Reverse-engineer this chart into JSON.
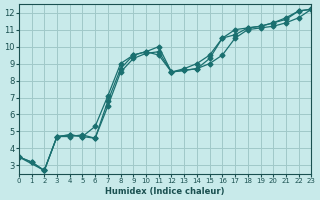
{
  "xlabel": "Humidex (Indice chaleur)",
  "ylabel": "",
  "background_color": "#c8eaea",
  "grid_color": "#a0c8c8",
  "line_color": "#1a7070",
  "xlim": [
    0,
    23
  ],
  "ylim": [
    2.5,
    12.5
  ],
  "xticks": [
    0,
    1,
    2,
    3,
    4,
    5,
    6,
    7,
    8,
    9,
    10,
    11,
    12,
    13,
    14,
    15,
    16,
    17,
    18,
    19,
    20,
    21,
    22,
    23
  ],
  "yticks": [
    3,
    4,
    5,
    6,
    7,
    8,
    9,
    10,
    11,
    12
  ],
  "line1_x": [
    0,
    1,
    2,
    3,
    4,
    5,
    6,
    7,
    8,
    9,
    10,
    11,
    12,
    13,
    14,
    15,
    16,
    17,
    18,
    19,
    20,
    21,
    22,
    23
  ],
  "line1_y": [
    3.5,
    3.2,
    2.7,
    4.7,
    4.7,
    4.8,
    4.6,
    6.8,
    8.7,
    9.5,
    9.7,
    10.0,
    8.5,
    8.6,
    8.7,
    9.3,
    10.5,
    10.7,
    11.1,
    11.2,
    11.4,
    11.6,
    12.1,
    12.2
  ],
  "line2_x": [
    0,
    1,
    2,
    3,
    4,
    5,
    6,
    7,
    8,
    9,
    10,
    11,
    12,
    13,
    14,
    15,
    16,
    17,
    18,
    19,
    20,
    21,
    22,
    23
  ],
  "line2_y": [
    3.5,
    3.2,
    2.7,
    4.7,
    4.8,
    4.7,
    5.3,
    7.1,
    9.0,
    9.5,
    9.7,
    9.5,
    8.5,
    8.7,
    9.0,
    9.5,
    10.5,
    11.0,
    11.1,
    11.2,
    11.4,
    11.7,
    12.1,
    12.2
  ],
  "line3_x": [
    0,
    2,
    3,
    4,
    5,
    6,
    7,
    8,
    9,
    10,
    11,
    12,
    13,
    14,
    15,
    16,
    17,
    18,
    19,
    20,
    21,
    22,
    23
  ],
  "line3_y": [
    3.5,
    2.7,
    4.7,
    4.8,
    4.7,
    4.6,
    6.5,
    8.5,
    9.3,
    9.6,
    9.7,
    8.5,
    8.6,
    8.7,
    9.0,
    9.5,
    10.5,
    11.0,
    11.1,
    11.2,
    11.4,
    11.7,
    12.2
  ]
}
